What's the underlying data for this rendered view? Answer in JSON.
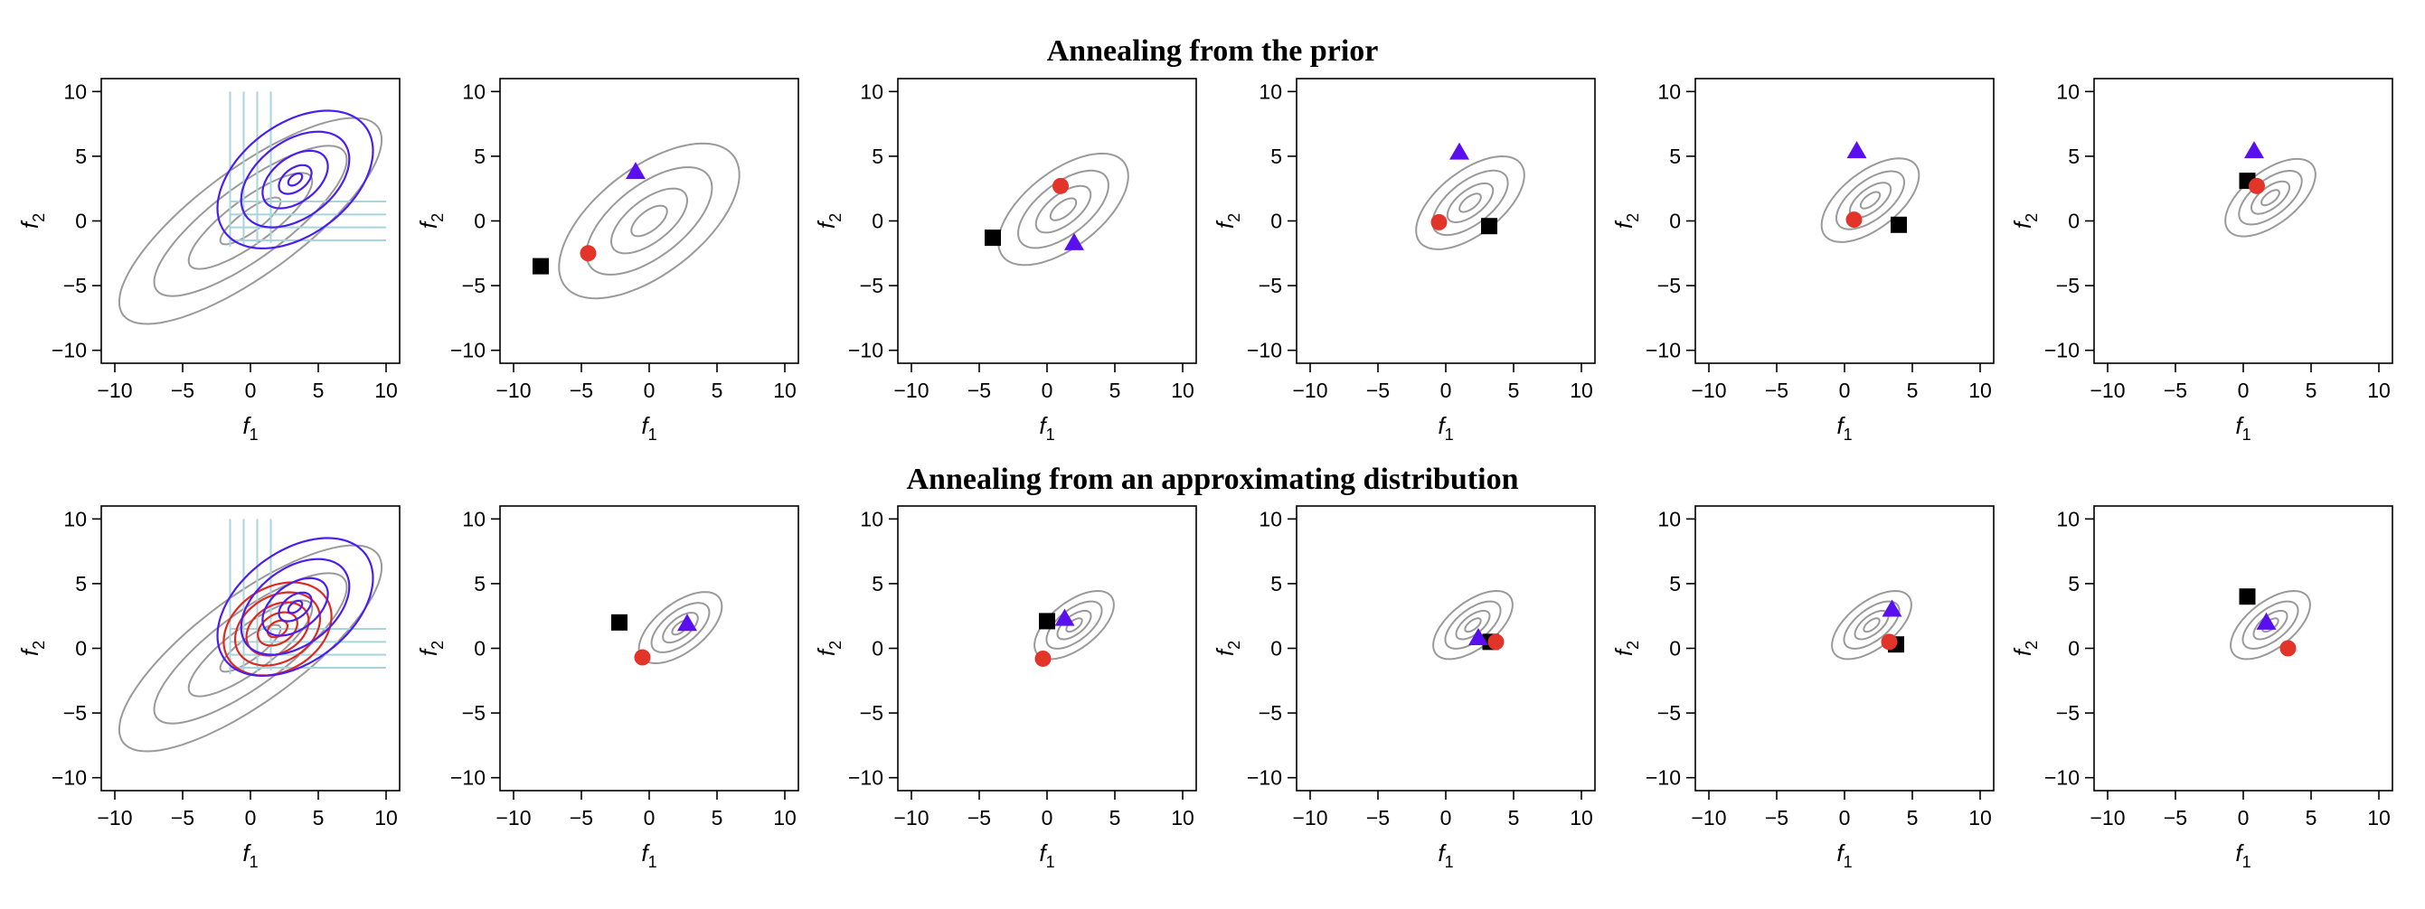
{
  "titles": {
    "top": "Annealing from the prior",
    "bottom": "Annealing from an approximating distribution"
  },
  "colors": {
    "contour": "#9a9a9a",
    "posterior": "#4a1ef0",
    "approx": "#e0281e",
    "factor_lines": "#a8d4dc",
    "circle": "#e3342a",
    "triangle": "#5a10ee",
    "square": "#000000"
  },
  "chart_data": [
    {
      "type": "scatter",
      "row": 0,
      "col": 0,
      "xlabel": "f",
      "xlabel_sub": "1",
      "ylabel": "f",
      "ylabel_sub": "2",
      "xlim": [
        -11,
        11
      ],
      "ylim": [
        -11,
        11
      ],
      "xticks": [
        -10,
        -5,
        0,
        5,
        10
      ],
      "yticks": [
        -10,
        -5,
        0,
        5,
        10
      ],
      "overlays": {
        "prior": true,
        "posterior": true,
        "approx": false,
        "factor_lines": true
      },
      "points": {}
    },
    {
      "type": "scatter",
      "row": 0,
      "col": 1,
      "xlabel": "f",
      "xlabel_sub": "1",
      "ylabel": "f",
      "ylabel_sub": "2",
      "xlim": [
        -11,
        11
      ],
      "ylim": [
        -11,
        11
      ],
      "xticks": [
        -10,
        -5,
        0,
        5,
        10
      ],
      "yticks": [
        -10,
        -5,
        0,
        5,
        10
      ],
      "contours": {
        "center": [
          0,
          0
        ],
        "scale": 1.0
      },
      "points": {
        "circle": [
          -4.5,
          -2.5
        ],
        "triangle": [
          -1,
          3.8
        ],
        "square": [
          -8,
          -3.5
        ]
      }
    },
    {
      "type": "scatter",
      "row": 0,
      "col": 2,
      "xlabel": "f",
      "xlabel_sub": "1",
      "ylabel": "f",
      "ylabel_sub": "2",
      "xlim": [
        -11,
        11
      ],
      "ylim": [
        -11,
        11
      ],
      "xticks": [
        -10,
        -5,
        0,
        5,
        10
      ],
      "yticks": [
        -10,
        -5,
        0,
        5,
        10
      ],
      "contours": {
        "center": [
          1.2,
          0.9
        ],
        "scale": 0.72
      },
      "points": {
        "circle": [
          1,
          2.7
        ],
        "triangle": [
          2,
          -1.7
        ],
        "square": [
          -4,
          -1.3
        ]
      }
    },
    {
      "type": "scatter",
      "row": 0,
      "col": 3,
      "xlabel": "f",
      "xlabel_sub": "1",
      "ylabel": "f",
      "ylabel_sub": "2",
      "xlim": [
        -11,
        11
      ],
      "ylim": [
        -11,
        11
      ],
      "xticks": [
        -10,
        -5,
        0,
        5,
        10
      ],
      "yticks": [
        -10,
        -5,
        0,
        5,
        10
      ],
      "contours": {
        "center": [
          1.8,
          1.4
        ],
        "scale": 0.6
      },
      "points": {
        "circle": [
          -0.5,
          -0.1
        ],
        "triangle": [
          1,
          5.3
        ],
        "square": [
          3.2,
          -0.4
        ]
      }
    },
    {
      "type": "scatter",
      "row": 0,
      "col": 4,
      "xlabel": "f",
      "xlabel_sub": "1",
      "ylabel": "f",
      "ylabel_sub": "2",
      "xlim": [
        -11,
        11
      ],
      "ylim": [
        -11,
        11
      ],
      "xticks": [
        -10,
        -5,
        0,
        5,
        10
      ],
      "yticks": [
        -10,
        -5,
        0,
        5,
        10
      ],
      "contours": {
        "center": [
          1.9,
          1.6
        ],
        "scale": 0.54
      },
      "points": {
        "circle": [
          0.7,
          0.1
        ],
        "triangle": [
          0.9,
          5.4
        ],
        "square": [
          4,
          -0.3
        ]
      }
    },
    {
      "type": "scatter",
      "row": 0,
      "col": 5,
      "xlabel": "f",
      "xlabel_sub": "1",
      "ylabel": "f",
      "ylabel_sub": "2",
      "xlim": [
        -11,
        11
      ],
      "ylim": [
        -11,
        11
      ],
      "xticks": [
        -10,
        -5,
        0,
        5,
        10
      ],
      "yticks": [
        -10,
        -5,
        0,
        5,
        10
      ],
      "contours": {
        "center": [
          2,
          1.8
        ],
        "scale": 0.5
      },
      "points": {
        "circle": [
          1,
          2.7
        ],
        "triangle": [
          0.8,
          5.4
        ],
        "square": [
          0.3,
          3.1
        ]
      }
    },
    {
      "type": "scatter",
      "row": 1,
      "col": 0,
      "xlabel": "f",
      "xlabel_sub": "1",
      "ylabel": "f",
      "ylabel_sub": "2",
      "xlim": [
        -11,
        11
      ],
      "ylim": [
        -11,
        11
      ],
      "xticks": [
        -10,
        -5,
        0,
        5,
        10
      ],
      "yticks": [
        -10,
        -5,
        0,
        5,
        10
      ],
      "overlays": {
        "prior": true,
        "posterior": true,
        "approx": true,
        "factor_lines": true
      },
      "points": {}
    },
    {
      "type": "scatter",
      "row": 1,
      "col": 1,
      "xlabel": "f",
      "xlabel_sub": "1",
      "ylabel": "f",
      "ylabel_sub": "2",
      "xlim": [
        -11,
        11
      ],
      "ylim": [
        -11,
        11
      ],
      "xticks": [
        -10,
        -5,
        0,
        5,
        10
      ],
      "yticks": [
        -10,
        -5,
        0,
        5,
        10
      ],
      "contours": {
        "center": [
          2.3,
          1.6
        ],
        "scale": 0.46
      },
      "points": {
        "circle": [
          -0.5,
          -0.7
        ],
        "triangle": [
          2.8,
          1.9
        ],
        "square": [
          -2.2,
          2
        ]
      }
    },
    {
      "type": "scatter",
      "row": 1,
      "col": 2,
      "xlabel": "f",
      "xlabel_sub": "1",
      "ylabel": "f",
      "ylabel_sub": "2",
      "xlim": [
        -11,
        11
      ],
      "ylim": [
        -11,
        11
      ],
      "xticks": [
        -10,
        -5,
        0,
        5,
        10
      ],
      "yticks": [
        -10,
        -5,
        0,
        5,
        10
      ],
      "contours": {
        "center": [
          2,
          1.8
        ],
        "scale": 0.44
      },
      "points": {
        "circle": [
          -0.3,
          -0.8
        ],
        "triangle": [
          1.3,
          2.3
        ],
        "square": [
          0,
          2.1
        ]
      }
    },
    {
      "type": "scatter",
      "row": 1,
      "col": 3,
      "xlabel": "f",
      "xlabel_sub": "1",
      "ylabel": "f",
      "ylabel_sub": "2",
      "xlim": [
        -11,
        11
      ],
      "ylim": [
        -11,
        11
      ],
      "xticks": [
        -10,
        -5,
        0,
        5,
        10
      ],
      "yticks": [
        -10,
        -5,
        0,
        5,
        10
      ],
      "contours": {
        "center": [
          2,
          1.8
        ],
        "scale": 0.44
      },
      "points": {
        "circle": [
          3.7,
          0.5
        ],
        "triangle": [
          2.4,
          0.8
        ],
        "square": [
          3.3,
          0.5
        ]
      }
    },
    {
      "type": "scatter",
      "row": 1,
      "col": 4,
      "xlabel": "f",
      "xlabel_sub": "1",
      "ylabel": "f",
      "ylabel_sub": "2",
      "xlim": [
        -11,
        11
      ],
      "ylim": [
        -11,
        11
      ],
      "xticks": [
        -10,
        -5,
        0,
        5,
        10
      ],
      "yticks": [
        -10,
        -5,
        0,
        5,
        10
      ],
      "contours": {
        "center": [
          2,
          1.8
        ],
        "scale": 0.44
      },
      "points": {
        "circle": [
          3.3,
          0.5
        ],
        "triangle": [
          3.5,
          3
        ],
        "square": [
          3.8,
          0.3
        ]
      }
    },
    {
      "type": "scatter",
      "row": 1,
      "col": 5,
      "xlabel": "f",
      "xlabel_sub": "1",
      "ylabel": "f",
      "ylabel_sub": "2",
      "xlim": [
        -11,
        11
      ],
      "ylim": [
        -11,
        11
      ],
      "xticks": [
        -10,
        -5,
        0,
        5,
        10
      ],
      "yticks": [
        -10,
        -5,
        0,
        5,
        10
      ],
      "contours": {
        "center": [
          2,
          1.8
        ],
        "scale": 0.44
      },
      "points": {
        "circle": [
          3.3,
          0
        ],
        "triangle": [
          1.7,
          2
        ],
        "square": [
          0.3,
          4
        ]
      }
    }
  ]
}
